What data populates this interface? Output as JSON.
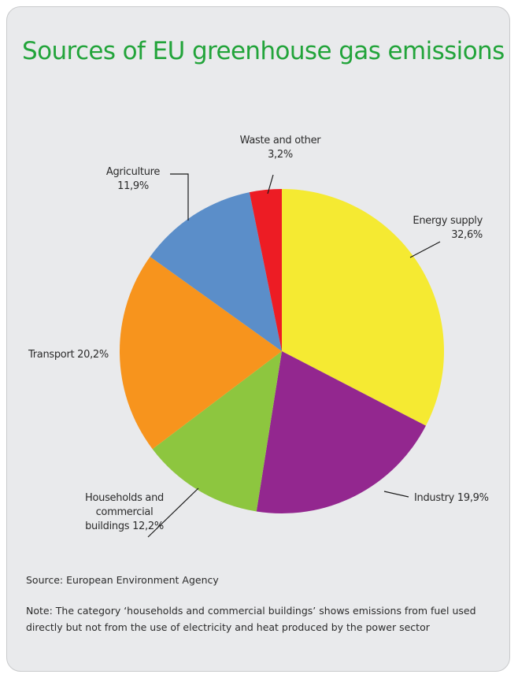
{
  "title": "Sources of EU greenhouse gas emissions",
  "colors": {
    "title": "#22a43a",
    "card_bg": "#e9eaec",
    "leader": "#1a1a1a"
  },
  "chart_data": {
    "type": "pie",
    "start_angle_deg": 0,
    "direction": "clockwise",
    "slices": [
      {
        "name": "Energy supply",
        "value": 32.6,
        "label_lines": [
          "Energy supply",
          "32,6%"
        ],
        "color": "#f5ea32"
      },
      {
        "name": "Industry",
        "value": 19.9,
        "label_lines": [
          "Industry 19,9%"
        ],
        "color": "#93278f"
      },
      {
        "name": "Households and commercial buildings",
        "value": 12.2,
        "label_lines": [
          "Households and",
          "commercial",
          "buildings 12,2%"
        ],
        "color": "#8dc63f"
      },
      {
        "name": "Transport",
        "value": 20.2,
        "label_lines": [
          "Transport 20,2%"
        ],
        "color": "#f7941d"
      },
      {
        "name": "Agriculture",
        "value": 11.9,
        "label_lines": [
          "Agriculture",
          "11,9%"
        ],
        "color": "#5b8ec9"
      },
      {
        "name": "Waste and other",
        "value": 3.2,
        "label_lines": [
          "Waste and other",
          "3,2%"
        ],
        "color": "#ed1c24"
      }
    ]
  },
  "source": "Source: European Environment Agency",
  "note": "Note: The category ‘households and commercial buildings’ shows emissions from fuel used directly but not from the use of electricity and heat produced by the power sector"
}
